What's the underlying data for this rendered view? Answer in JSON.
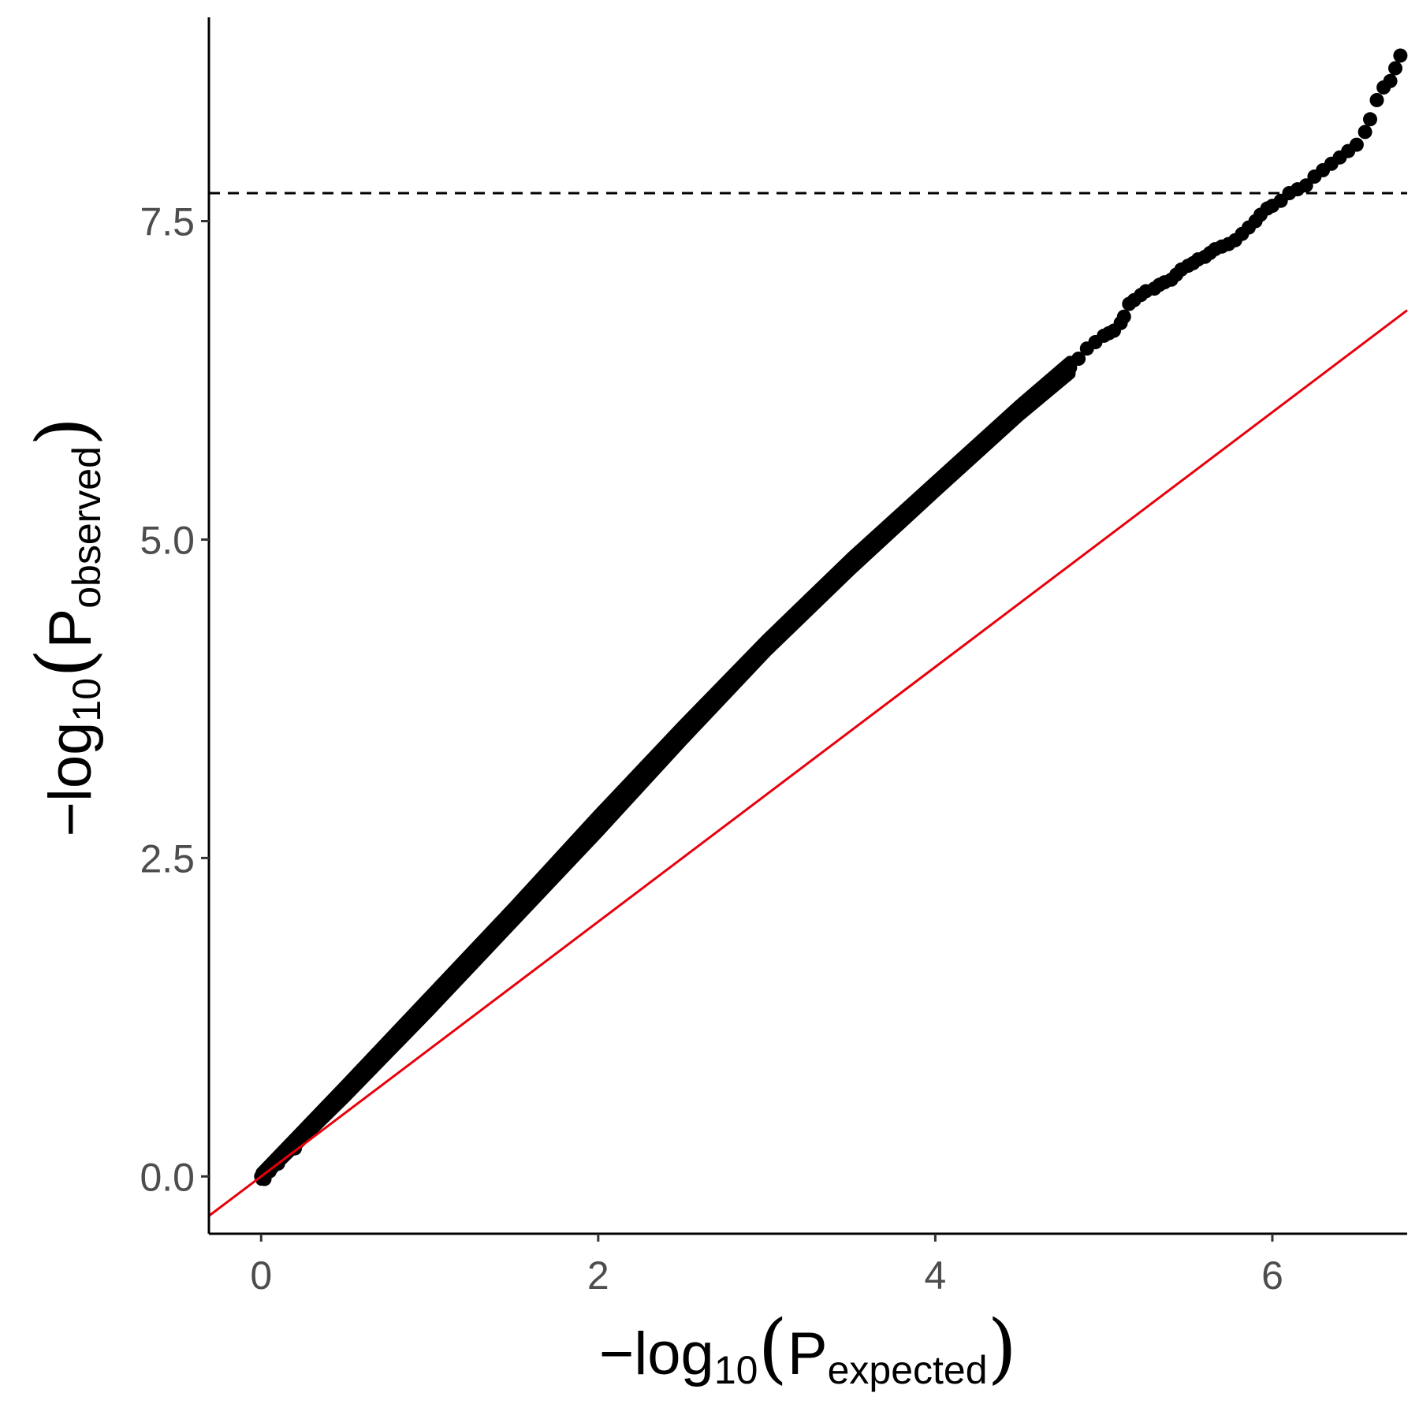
{
  "chart_data": {
    "type": "scatter",
    "title": "",
    "xlabel": {
      "prefix": "−log",
      "sub": "10",
      "open": "(",
      "var": "P",
      "var_sub": "expected",
      "close": ")"
    },
    "ylabel": {
      "prefix": "−log",
      "sub": "10",
      "open": "(",
      "var": "P",
      "var_sub": "observed",
      "close": ")"
    },
    "xlim": [
      -0.31,
      6.8
    ],
    "ylim": [
      -0.45,
      9.1
    ],
    "x_ticks": [
      0,
      2,
      4,
      6
    ],
    "x_tick_labels": [
      "0",
      "2",
      "4",
      "6"
    ],
    "y_ticks": [
      0,
      2.5,
      5,
      7.5
    ],
    "y_tick_labels": [
      "0.0",
      "2.5",
      "5.0",
      "7.5"
    ],
    "grid": false,
    "legend": "none",
    "reference_line": {
      "type": "diagonal",
      "intercept": 0,
      "slope": 1,
      "color": "#e8000b"
    },
    "threshold_line": {
      "y": 7.72,
      "style": "dashed",
      "color": "#000000"
    },
    "point_color": "#000000",
    "dense_band": {
      "x_start": 0.0,
      "x_end": 4.8,
      "upper": [
        [
          0.0,
          0.03
        ],
        [
          0.5,
          0.72
        ],
        [
          1.0,
          1.42
        ],
        [
          1.5,
          2.12
        ],
        [
          2.0,
          2.84
        ],
        [
          2.5,
          3.54
        ],
        [
          3.0,
          4.22
        ],
        [
          3.5,
          4.86
        ],
        [
          4.0,
          5.46
        ],
        [
          4.5,
          6.06
        ],
        [
          4.8,
          6.4
        ]
      ],
      "lower": [
        [
          0.0,
          -0.03
        ],
        [
          0.5,
          0.62
        ],
        [
          1.0,
          1.3
        ],
        [
          1.5,
          2.0
        ],
        [
          2.0,
          2.7
        ],
        [
          2.5,
          3.42
        ],
        [
          3.0,
          4.12
        ],
        [
          3.5,
          4.76
        ],
        [
          4.0,
          5.37
        ],
        [
          4.5,
          5.97
        ],
        [
          4.8,
          6.3
        ]
      ]
    },
    "points": [
      [
        0.0,
        0.0
      ],
      [
        0.02,
        -0.02
      ],
      [
        0.05,
        0.04
      ],
      [
        0.1,
        0.1
      ],
      [
        0.2,
        0.22
      ],
      [
        4.8,
        6.35
      ],
      [
        4.85,
        6.42
      ],
      [
        4.9,
        6.5
      ],
      [
        4.95,
        6.55
      ],
      [
        5.0,
        6.6
      ],
      [
        5.03,
        6.62
      ],
      [
        5.06,
        6.64
      ],
      [
        5.1,
        6.7
      ],
      [
        5.12,
        6.75
      ],
      [
        5.15,
        6.85
      ],
      [
        5.18,
        6.88
      ],
      [
        5.22,
        6.92
      ],
      [
        5.25,
        6.95
      ],
      [
        5.3,
        6.97
      ],
      [
        5.33,
        7.0
      ],
      [
        5.36,
        7.02
      ],
      [
        5.4,
        7.04
      ],
      [
        5.43,
        7.08
      ],
      [
        5.46,
        7.12
      ],
      [
        5.5,
        7.15
      ],
      [
        5.53,
        7.17
      ],
      [
        5.56,
        7.2
      ],
      [
        5.6,
        7.22
      ],
      [
        5.63,
        7.25
      ],
      [
        5.66,
        7.28
      ],
      [
        5.7,
        7.3
      ],
      [
        5.74,
        7.32
      ],
      [
        5.78,
        7.35
      ],
      [
        5.82,
        7.4
      ],
      [
        5.86,
        7.45
      ],
      [
        5.9,
        7.5
      ],
      [
        5.93,
        7.55
      ],
      [
        5.97,
        7.6
      ],
      [
        6.0,
        7.62
      ],
      [
        6.05,
        7.66
      ],
      [
        6.1,
        7.72
      ],
      [
        6.15,
        7.75
      ],
      [
        6.2,
        7.78
      ],
      [
        6.25,
        7.85
      ],
      [
        6.3,
        7.9
      ],
      [
        6.35,
        7.95
      ],
      [
        6.4,
        8.0
      ],
      [
        6.45,
        8.05
      ],
      [
        6.5,
        8.1
      ],
      [
        6.55,
        8.2
      ],
      [
        6.58,
        8.3
      ],
      [
        6.62,
        8.45
      ],
      [
        6.66,
        8.55
      ],
      [
        6.7,
        8.6
      ],
      [
        6.73,
        8.7
      ],
      [
        6.76,
        8.8
      ]
    ]
  }
}
